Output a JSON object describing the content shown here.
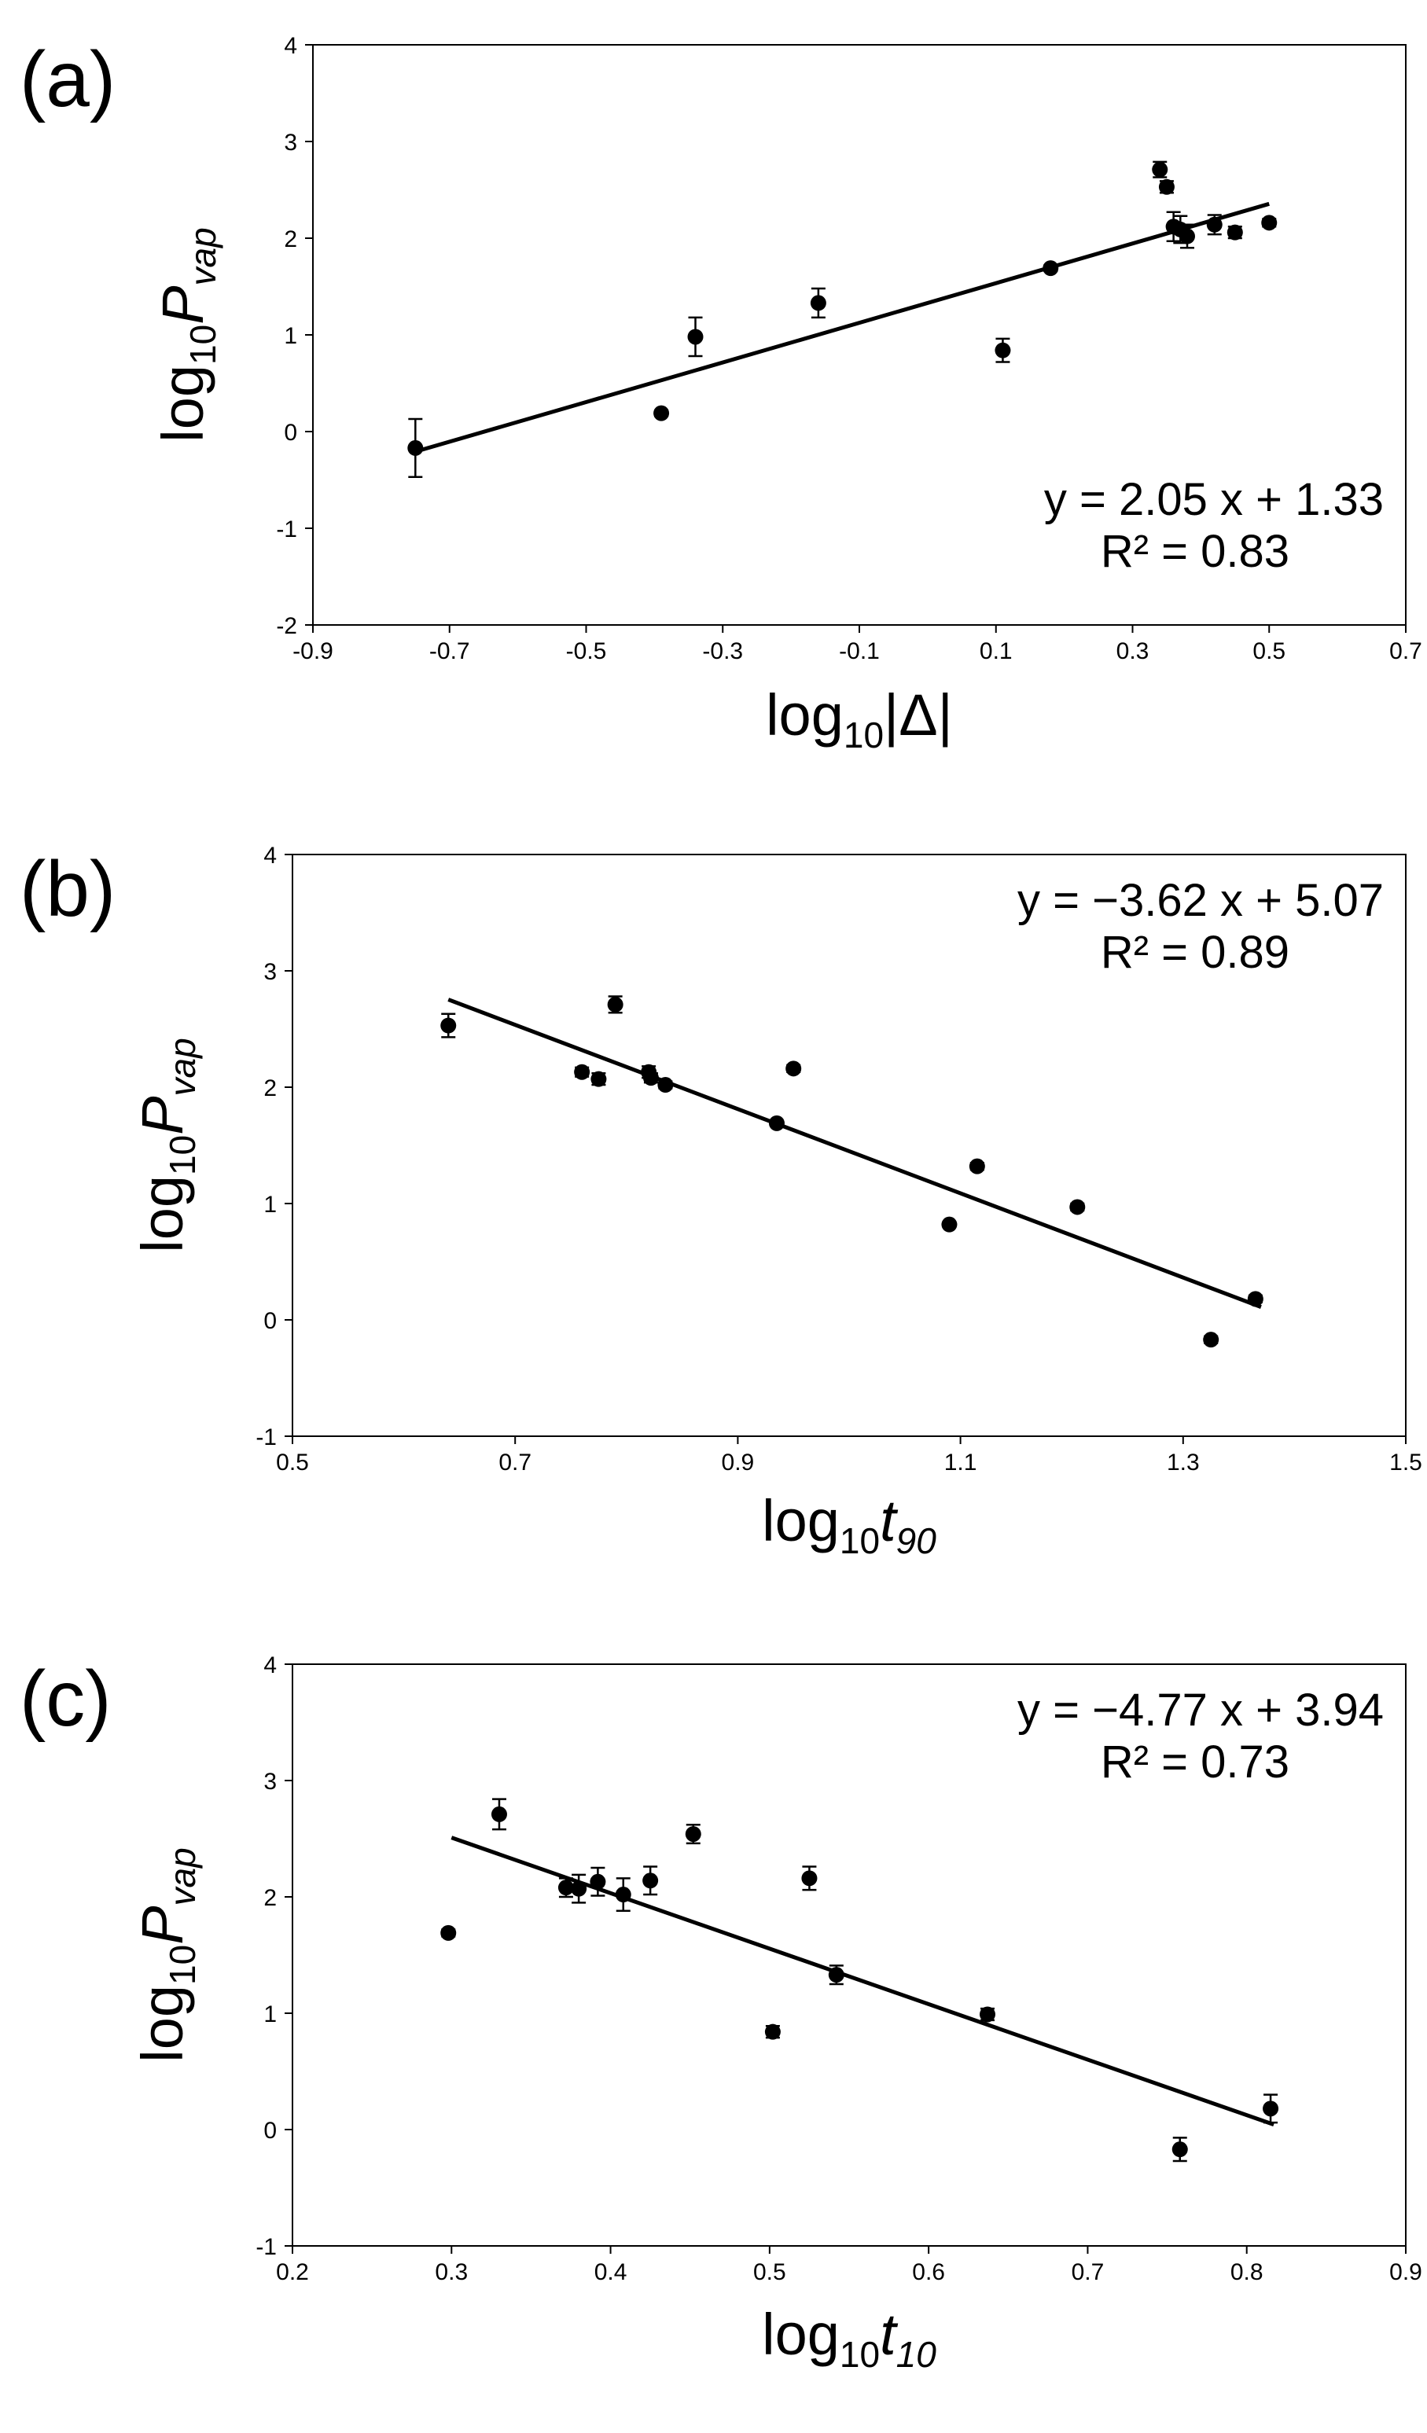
{
  "chart_data": [
    {
      "type": "scatter",
      "panel_label": "(a)",
      "ylabel": {
        "base": "log",
        "sub": "10",
        "var": "P",
        "varsub": "vap"
      },
      "xlabel": {
        "base": "log",
        "sub": "10",
        "var": "|Δ|"
      },
      "xlim": [
        -0.9,
        0.7
      ],
      "ylim": [
        -2,
        4
      ],
      "xticks": [
        "-0.9",
        "-0.7",
        "-0.5",
        "-0.3",
        "-0.1",
        "0.1",
        "0.3",
        "0.5",
        "0.7"
      ],
      "yticks": [
        "-2",
        "-1",
        "0",
        "1",
        "2",
        "3",
        "4"
      ],
      "grid": false,
      "equation": "y = 2.05 x + 1.33",
      "r2": "R² = 0.83",
      "fit": {
        "slope": 2.05,
        "intercept": 1.33,
        "x_range": [
          -0.75,
          0.5
        ]
      },
      "points": [
        {
          "x": -0.75,
          "y": -0.17,
          "err": 0.3
        },
        {
          "x": -0.39,
          "y": 0.19,
          "err": 0.03
        },
        {
          "x": -0.34,
          "y": 0.98,
          "err": 0.2
        },
        {
          "x": -0.16,
          "y": 1.33,
          "err": 0.15
        },
        {
          "x": 0.11,
          "y": 0.84,
          "err": 0.12
        },
        {
          "x": 0.18,
          "y": 1.69,
          "err": 0.03
        },
        {
          "x": 0.34,
          "y": 2.71,
          "err": 0.08
        },
        {
          "x": 0.35,
          "y": 2.53,
          "err": 0.06
        },
        {
          "x": 0.36,
          "y": 2.12,
          "err": 0.15
        },
        {
          "x": 0.37,
          "y": 2.09,
          "err": 0.14
        },
        {
          "x": 0.38,
          "y": 2.02,
          "err": 0.12
        },
        {
          "x": 0.42,
          "y": 2.14,
          "err": 0.1
        },
        {
          "x": 0.45,
          "y": 2.06,
          "err": 0.06
        },
        {
          "x": 0.5,
          "y": 2.16,
          "err": 0.04
        }
      ]
    },
    {
      "type": "scatter",
      "panel_label": "(b)",
      "ylabel": {
        "base": "log",
        "sub": "10",
        "var": "P",
        "varsub": "vap"
      },
      "xlabel": {
        "base": "log",
        "sub": "10",
        "var": "t",
        "varsub": "90"
      },
      "xlim": [
        0.5,
        1.5
      ],
      "ylim": [
        -1,
        4
      ],
      "xticks": [
        "0.5",
        "0.7",
        "0.9",
        "1.1",
        "1.3",
        "1.5"
      ],
      "yticks": [
        "-1",
        "0",
        "1",
        "2",
        "3",
        "4"
      ],
      "grid": false,
      "equation": "y = −3.62 x + 5.07",
      "r2": "R² = 0.89",
      "fit": {
        "slope": -3.62,
        "intercept": 5.07,
        "x_range": [
          0.64,
          1.37
        ]
      },
      "points": [
        {
          "x": 0.64,
          "y": 2.53,
          "err": 0.1
        },
        {
          "x": 0.76,
          "y": 2.13,
          "err": 0.04
        },
        {
          "x": 0.775,
          "y": 2.07,
          "err": 0.05
        },
        {
          "x": 0.79,
          "y": 2.71,
          "err": 0.07
        },
        {
          "x": 0.82,
          "y": 2.13,
          "err": 0.05
        },
        {
          "x": 0.822,
          "y": 2.08,
          "err": 0.04
        },
        {
          "x": 0.835,
          "y": 2.02,
          "err": 0.03
        },
        {
          "x": 0.935,
          "y": 1.69,
          "err": 0.02
        },
        {
          "x": 0.95,
          "y": 2.16,
          "err": 0.03
        },
        {
          "x": 1.09,
          "y": 0.82,
          "err": 0.02
        },
        {
          "x": 1.115,
          "y": 1.32,
          "err": 0.03
        },
        {
          "x": 1.205,
          "y": 0.97,
          "err": 0.03
        },
        {
          "x": 1.325,
          "y": -0.17,
          "err": 0.03
        },
        {
          "x": 1.365,
          "y": 0.18,
          "err": 0.03
        }
      ]
    },
    {
      "type": "scatter",
      "panel_label": "(c)",
      "ylabel": {
        "base": "log",
        "sub": "10",
        "var": "P",
        "varsub": "vap"
      },
      "xlabel": {
        "base": "log",
        "sub": "10",
        "var": "t",
        "varsub": "10"
      },
      "xlim": [
        0.2,
        0.9
      ],
      "ylim": [
        -1,
        4
      ],
      "xticks": [
        "0.2",
        "0.3",
        "0.4",
        "0.5",
        "0.6",
        "0.7",
        "0.8",
        "0.9"
      ],
      "yticks": [
        "-1",
        "0",
        "1",
        "2",
        "3",
        "4"
      ],
      "grid": false,
      "equation": "y = −4.77 x + 3.94",
      "r2": "R² = 0.73",
      "fit": {
        "slope": -4.77,
        "intercept": 3.94,
        "x_range": [
          0.3,
          0.817
        ]
      },
      "points": [
        {
          "x": 0.298,
          "y": 1.69,
          "err": 0.03
        },
        {
          "x": 0.33,
          "y": 2.71,
          "err": 0.13
        },
        {
          "x": 0.372,
          "y": 2.08,
          "err": 0.08
        },
        {
          "x": 0.38,
          "y": 2.07,
          "err": 0.12
        },
        {
          "x": 0.392,
          "y": 2.13,
          "err": 0.12
        },
        {
          "x": 0.408,
          "y": 2.02,
          "err": 0.14
        },
        {
          "x": 0.425,
          "y": 2.14,
          "err": 0.12
        },
        {
          "x": 0.452,
          "y": 2.54,
          "err": 0.08
        },
        {
          "x": 0.502,
          "y": 0.84,
          "err": 0.05
        },
        {
          "x": 0.525,
          "y": 2.16,
          "err": 0.1
        },
        {
          "x": 0.542,
          "y": 1.33,
          "err": 0.08
        },
        {
          "x": 0.637,
          "y": 0.99,
          "err": 0.05
        },
        {
          "x": 0.758,
          "y": -0.17,
          "err": 0.1
        },
        {
          "x": 0.815,
          "y": 0.18,
          "err": 0.12
        }
      ]
    }
  ]
}
